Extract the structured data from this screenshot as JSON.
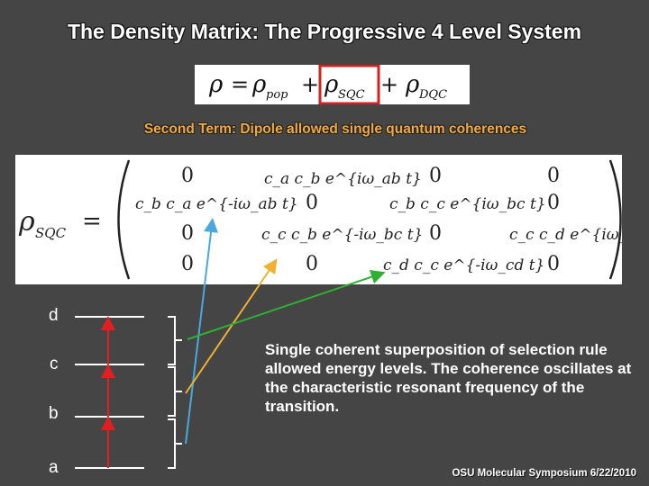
{
  "slide": {
    "title": "The Density Matrix: The Progressive 4 Level System",
    "subtitle": "Second Term: Dipole allowed single quantum coherences",
    "description": "Single coherent superposition of selection rule allowed energy levels. The coherence oscillates at the characteristic resonant frequency of the transition.",
    "footer": "OSU Molecular Symposium 6/22/2010"
  },
  "equation": {
    "lhs": "ρ",
    "term1": "ρ",
    "term1_sub": "pop",
    "term2": "ρ",
    "term2_sub": "SQC",
    "term3": "ρ",
    "term3_sub": "DQC",
    "highlight_color": "#d42020"
  },
  "matrix": {
    "lhs": "ρ",
    "lhs_sub": "SQC",
    "rows": [
      [
        "0",
        "c_a c_b e^{iω_ab t}",
        "0",
        "0"
      ],
      [
        "c_b c_a e^{-iω_ab t}",
        "0",
        "c_b c_c e^{iω_bc t}",
        "0"
      ],
      [
        "0",
        "c_c c_b e^{-iω_bc t}",
        "0",
        "c_c c_d e^{iω_cd t}"
      ],
      [
        "0",
        "0",
        "c_d c_c e^{-iω_cd t}",
        "0"
      ]
    ]
  },
  "levels": {
    "labels": [
      "d",
      "c",
      "b",
      "a"
    ],
    "arrow_color": "#e02020"
  },
  "pointers": {
    "colors": {
      "ab": "#4aa8e0",
      "bc": "#f0b030",
      "cd": "#30b030"
    }
  },
  "colors": {
    "background": "#454545",
    "subtitle": "#f2a93b"
  }
}
